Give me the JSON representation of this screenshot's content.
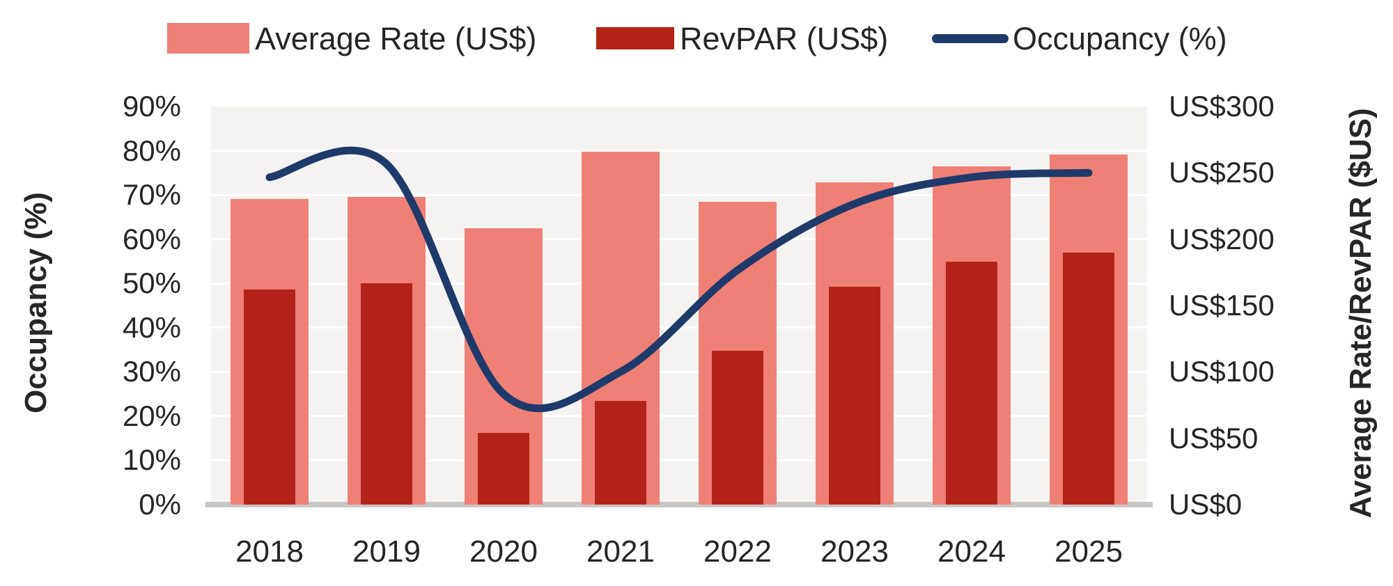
{
  "legend": {
    "items": [
      {
        "label": "Average Rate (US$)",
        "swatch": "bar",
        "color": "#ef8078"
      },
      {
        "label": "RevPAR (US$)",
        "swatch": "bar",
        "color": "#b22318"
      },
      {
        "label": "Occupancy (%)",
        "swatch": "line",
        "color": "#1f3a68"
      }
    ]
  },
  "axes": {
    "left_title": "Occupancy (%)",
    "right_title": "Average Rate/RevPAR ($US)",
    "left_ticks": [
      "90%",
      "80%",
      "70%",
      "60%",
      "50%",
      "40%",
      "30%",
      "20%",
      "10%",
      "0%"
    ],
    "right_ticks": [
      "US$300",
      "US$250",
      "US$200",
      "US$150",
      "US$100",
      "US$50",
      "US$0"
    ],
    "x_ticks": [
      "2018",
      "2019",
      "2020",
      "2021",
      "2022",
      "2023",
      "2024",
      "2025"
    ]
  },
  "colors": {
    "average_rate_bar": "#ef8078",
    "revpar_bar": "#b22318",
    "occupancy_line": "#1f3a68",
    "plot_background": "#f4f3f2",
    "gridline": "#ffffff",
    "axis_line": "#c9c7c5",
    "text": "#262626"
  },
  "chart_data": {
    "type": "combo",
    "categories": [
      "2018",
      "2019",
      "2020",
      "2021",
      "2022",
      "2023",
      "2024",
      "2025"
    ],
    "series": [
      {
        "name": "Average Rate (US$)",
        "type": "bar",
        "axis": "right",
        "values": [
          230,
          232,
          208,
          266,
          228,
          243,
          255,
          264
        ]
      },
      {
        "name": "RevPAR (US$)",
        "type": "bar",
        "axis": "right",
        "values": [
          162,
          167,
          54,
          78,
          116,
          164,
          183,
          190
        ]
      },
      {
        "name": "Occupancy (%)",
        "type": "line",
        "axis": "left",
        "values": [
          74,
          77,
          25,
          30,
          53,
          68,
          74,
          75
        ]
      }
    ],
    "left_axis": {
      "label": "Occupancy (%)",
      "min": 0,
      "max": 90,
      "unit": "%",
      "tick_step": 10
    },
    "right_axis": {
      "label": "Average Rate/RevPAR ($US)",
      "min": 0,
      "max": 300,
      "unit": "US$",
      "tick_step": 50
    },
    "legend_position": "top",
    "grid": true,
    "line_smooth": true
  }
}
